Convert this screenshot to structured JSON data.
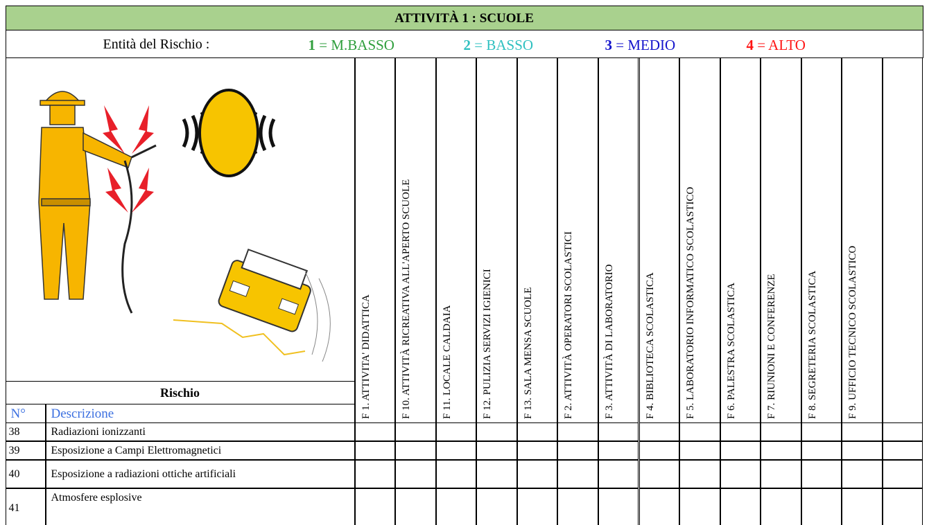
{
  "header": {
    "title": "ATTIVITÀ 1 : SCUOLE",
    "risk_label": "Entità del Rischio :",
    "levels": [
      {
        "number": "1",
        "label": "= M.BASSO",
        "color": "#2f9e3c"
      },
      {
        "number": "2",
        "label": "= BASSO",
        "color": "#2fc0c0"
      },
      {
        "number": "3",
        "label": "= MEDIO",
        "color": "#1414cc"
      },
      {
        "number": "4",
        "label": "= ALTO",
        "color": "#ff1414"
      }
    ]
  },
  "table": {
    "risk_heading": "Rischio",
    "columns": [
      "N°",
      "Descrizione"
    ],
    "activities": [
      "F 1. ATTIVITA' DIDATTICA",
      "F 10. ATTIVITÀ RICREATIVA ALL'APERTO SCUOLE",
      "F 11. LOCALE CALDAIA",
      "F 12. PULIZIA SERVIZI IGIENICI",
      "F 13. SALA MENSA SCUOLE",
      "F 2. ATTIVITÀ OPERATORI SCOLASTICI",
      "F 3. ATTIVITÀ DI LABORATORIO",
      "F 4. BIBLIOTECA SCOLASTICA",
      "F 5. LABORATORIO INFORMATICO SCOLASTICO",
      "F 6. PALESTRA SCOLASTICA",
      "F 7. RIUNIONI E CONFERENZE",
      "F 8. SEGRETERIA SCOLASTICA",
      "F 9. UFFICIO TECNICO SCOLASTICO"
    ],
    "rows": [
      [
        "38",
        "Radiazioni ionizzanti"
      ],
      [
        "39",
        "Esposizione a Campi Elettromagnetici"
      ],
      [
        "40",
        "Esposizione a radiazioni ottiche artificiali"
      ],
      [
        "41",
        "Atmosfere esplosive"
      ]
    ]
  }
}
